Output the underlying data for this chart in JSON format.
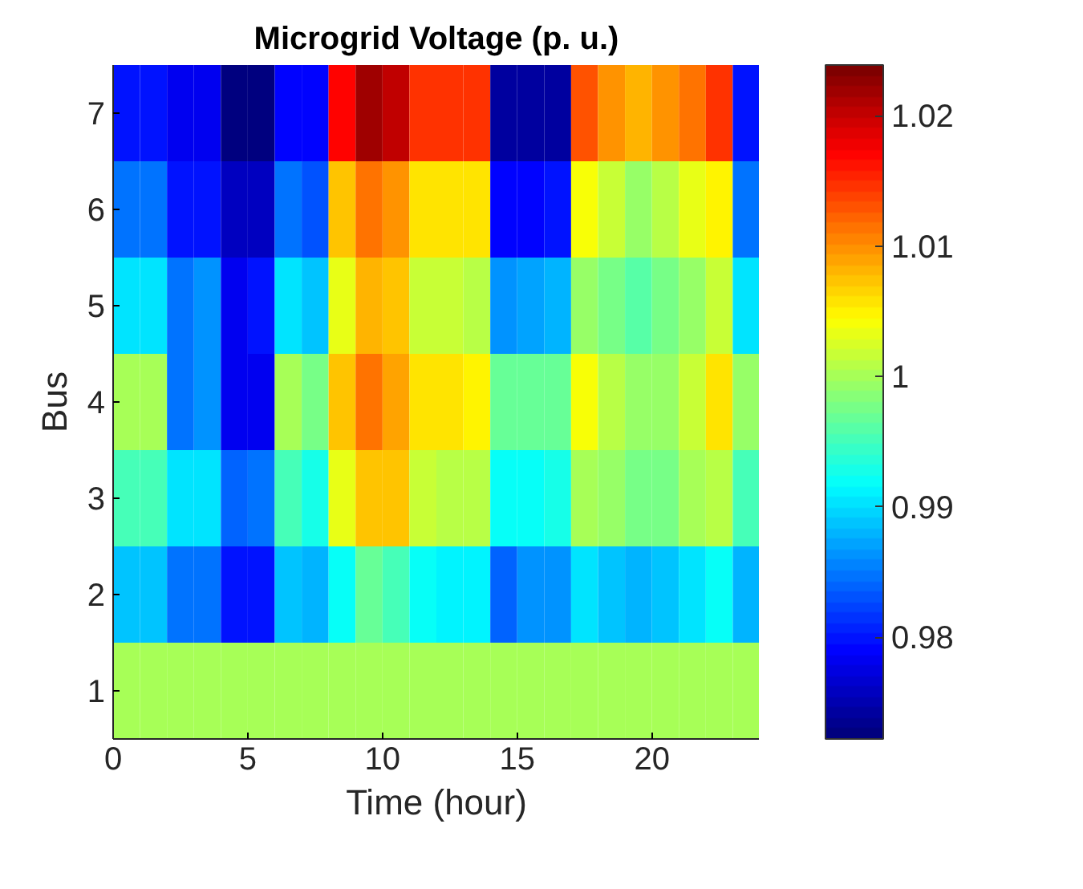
{
  "chart_data": {
    "type": "heatmap",
    "title": "Microgrid Voltage (p. u.)",
    "xlabel": "Time (hour)",
    "ylabel": "Bus",
    "x": [
      0.5,
      1.5,
      2.5,
      3.5,
      4.5,
      5.5,
      6.5,
      7.5,
      8.5,
      9.5,
      10.5,
      11.5,
      12.5,
      13.5,
      14.5,
      15.5,
      16.5,
      17.5,
      18.5,
      19.5,
      20.5,
      21.5,
      22.5,
      23.5
    ],
    "xlim": [
      0,
      24
    ],
    "xticks": [
      0,
      5,
      10,
      15,
      20
    ],
    "y_categories": [
      "7",
      "6",
      "5",
      "4",
      "3",
      "2",
      "1"
    ],
    "cells": [
      [
        0.98,
        0.98,
        0.978,
        0.978,
        0.973,
        0.973,
        0.979,
        0.979,
        1.017,
        1.022,
        1.02,
        1.015,
        1.015,
        1.015,
        0.974,
        0.974,
        0.974,
        1.013,
        1.01,
        1.008,
        1.01,
        1.011,
        1.015,
        0.98
      ],
      [
        0.985,
        0.985,
        0.98,
        0.98,
        0.976,
        0.976,
        0.985,
        0.983,
        1.007,
        1.011,
        1.01,
        1.006,
        1.006,
        1.006,
        0.979,
        0.979,
        0.98,
        1.004,
        1.002,
        0.999,
        1.001,
        1.003,
        1.005,
        0.985
      ],
      [
        0.99,
        0.99,
        0.985,
        0.986,
        0.978,
        0.98,
        0.99,
        0.989,
        1.003,
        1.008,
        1.007,
        1.002,
        1.002,
        1.001,
        0.986,
        0.987,
        0.988,
        0.999,
        0.998,
        0.996,
        0.998,
        0.999,
        1.002,
        0.99
      ],
      [
        1.0,
        1.0,
        0.985,
        0.986,
        0.978,
        0.978,
        1.0,
        0.998,
        1.007,
        1.011,
        1.009,
        1.006,
        1.006,
        1.005,
        0.997,
        0.997,
        0.997,
        1.004,
        1.001,
        0.999,
        0.999,
        1.002,
        1.006,
        0.999
      ],
      [
        0.995,
        0.995,
        0.99,
        0.99,
        0.984,
        0.985,
        0.995,
        0.993,
        1.003,
        1.007,
        1.007,
        1.002,
        1.001,
        1.001,
        0.992,
        0.992,
        0.993,
        1.0,
        0.999,
        0.998,
        0.998,
        1.0,
        1.001,
        0.995
      ],
      [
        0.989,
        0.989,
        0.985,
        0.985,
        0.98,
        0.98,
        0.989,
        0.988,
        0.992,
        0.997,
        0.995,
        0.992,
        0.991,
        0.991,
        0.984,
        0.986,
        0.986,
        0.99,
        0.989,
        0.988,
        0.989,
        0.99,
        0.992,
        0.988
      ],
      [
        1.0,
        1.0,
        1.0,
        1.0,
        1.0,
        1.0,
        1.0,
        1.0,
        1.0,
        1.0,
        1.0,
        1.0,
        1.0,
        1.0,
        1.0,
        1.0,
        1.0,
        1.0,
        1.0,
        1.0,
        1.0,
        1.0,
        1.0,
        1.0
      ]
    ],
    "clim": [
      0.9722,
      1.0239
    ],
    "cticks": [
      0.98,
      0.99,
      1,
      1.01,
      1.02
    ]
  }
}
